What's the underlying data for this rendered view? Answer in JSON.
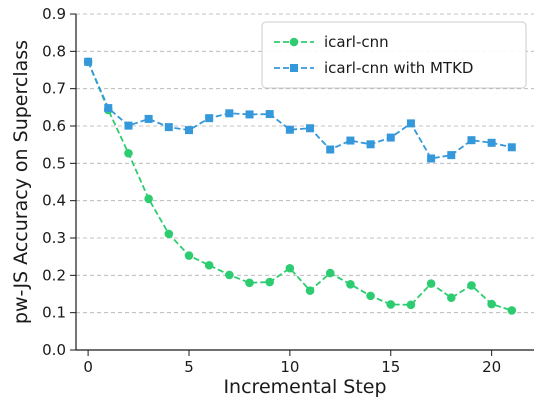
{
  "chart_data": {
    "type": "line",
    "title": "",
    "xlabel": "Incremental Step",
    "ylabel": "pw-JS Accuracy on Superclass",
    "xlim": [
      -0.6,
      22.1
    ],
    "ylim": [
      0.0,
      0.9
    ],
    "xticks": [
      0,
      5,
      10,
      15,
      20
    ],
    "yticks": [
      0.0,
      0.1,
      0.2,
      0.3,
      0.4,
      0.5,
      0.6,
      0.7,
      0.8,
      0.9
    ],
    "grid": "horizontal dashed",
    "legend_position": "top-right",
    "x": [
      0,
      1,
      2,
      3,
      4,
      5,
      6,
      7,
      8,
      9,
      10,
      11,
      12,
      13,
      14,
      15,
      16,
      17,
      18,
      19,
      20,
      21
    ],
    "series": [
      {
        "name": "icarl-cnn",
        "color": "#2ecc71",
        "marker": "circle",
        "values": [
          0.772,
          0.643,
          0.527,
          0.405,
          0.311,
          0.253,
          0.227,
          0.201,
          0.18,
          0.182,
          0.219,
          0.159,
          0.206,
          0.176,
          0.145,
          0.122,
          0.121,
          0.178,
          0.14,
          0.173,
          0.123,
          0.106
        ]
      },
      {
        "name": "icarl-cnn with MTKD",
        "color": "#3498db",
        "marker": "square",
        "values": [
          0.772,
          0.648,
          0.601,
          0.619,
          0.597,
          0.589,
          0.621,
          0.634,
          0.631,
          0.632,
          0.59,
          0.594,
          0.537,
          0.561,
          0.551,
          0.569,
          0.607,
          0.513,
          0.522,
          0.562,
          0.555,
          0.543
        ]
      }
    ]
  }
}
